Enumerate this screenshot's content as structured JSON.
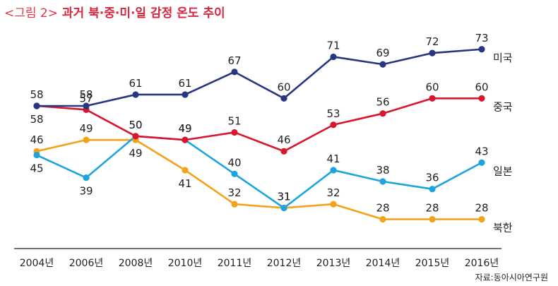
{
  "title": {
    "tag": "<그림 2>",
    "main": "과거 북·중·미·일 감정 온도 추이"
  },
  "source": "자료:동아시아연구원",
  "chart_data": {
    "type": "line",
    "categories": [
      "2004년",
      "2006년",
      "2008년",
      "2010년",
      "2011년",
      "2012년",
      "2013년",
      "2014년",
      "2015년",
      "2016년"
    ],
    "ylim": [
      20,
      77
    ],
    "grid": false,
    "legend": "right, labels at line ends",
    "series": [
      {
        "name": "미국",
        "color": "#27377f",
        "values": [
          58,
          58,
          61,
          61,
          67,
          60,
          71,
          69,
          72,
          73
        ]
      },
      {
        "name": "중국",
        "color": "#d7172f",
        "values": [
          58,
          57,
          50,
          49,
          51,
          46,
          53,
          56,
          60,
          60
        ]
      },
      {
        "name": "일본",
        "color": "#1ea4dc",
        "values": [
          45,
          39,
          50,
          49,
          40,
          31,
          41,
          38,
          36,
          43
        ]
      },
      {
        "name": "북한",
        "color": "#f2a31b",
        "values": [
          46,
          49,
          49,
          41,
          32,
          31,
          32,
          28,
          28,
          28
        ]
      }
    ]
  }
}
